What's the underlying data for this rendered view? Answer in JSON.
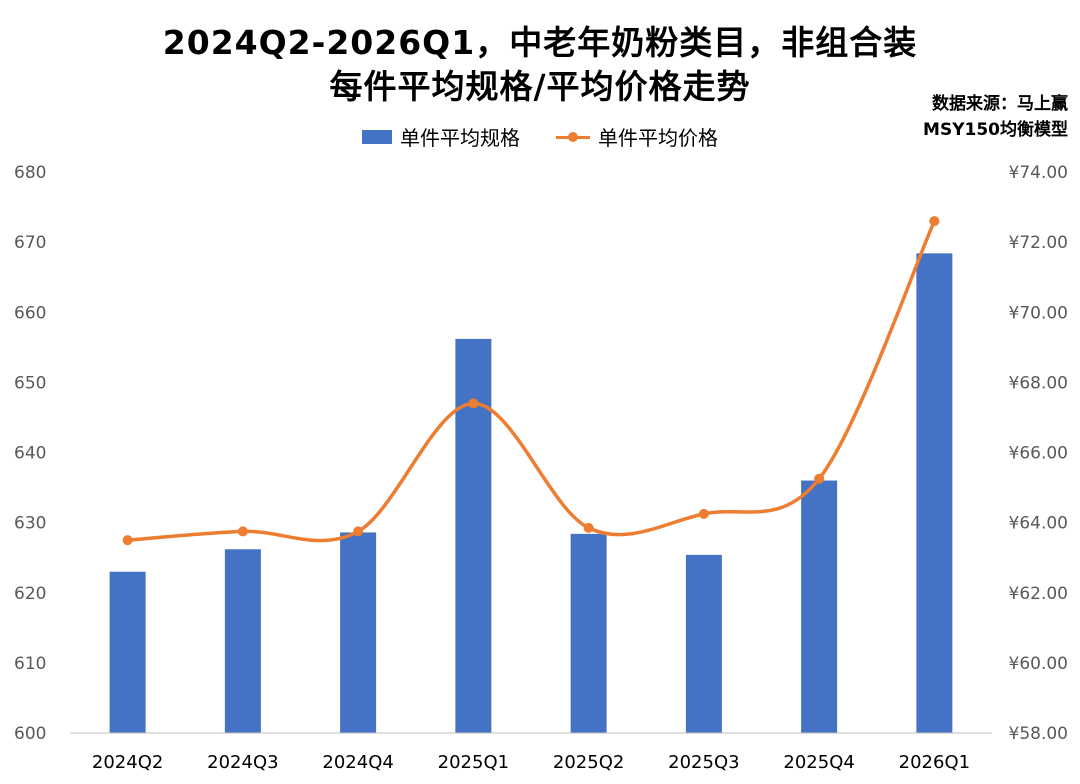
{
  "title_line1": "2024Q2-2026Q1，中老年奶粉类目，非组合装",
  "title_line2": "每件平均规格/平均价格走势",
  "source_line1": "数据来源：马上赢",
  "source_line2": "MSY150均衡模型",
  "colors": {
    "bar": "#4472C4",
    "line": "#ED7D31",
    "axis": "#BFBFBF",
    "text": "#595959"
  },
  "chart_data": {
    "type": "bar",
    "categories": [
      "2024Q2",
      "2024Q3",
      "2024Q4",
      "2025Q1",
      "2025Q2",
      "2025Q3",
      "2025Q4",
      "2026Q1"
    ],
    "series": [
      {
        "name": "单件平均规格",
        "type": "bar",
        "axis": "left",
        "values": [
          623,
          626.2,
          628.6,
          656.2,
          628.4,
          625.4,
          636,
          668.4
        ]
      },
      {
        "name": "单件平均价格",
        "type": "line",
        "axis": "right",
        "smooth": true,
        "values": [
          63.5,
          63.75,
          63.75,
          67.4,
          63.85,
          64.25,
          65.25,
          72.6
        ]
      }
    ],
    "left_axis": {
      "min": 600,
      "max": 680,
      "step": 10,
      "tick_labels": [
        "600",
        "610",
        "620",
        "630",
        "640",
        "650",
        "660",
        "670",
        "680"
      ]
    },
    "right_axis": {
      "min": 58,
      "max": 74,
      "step": 2,
      "tick_labels": [
        "¥58.00",
        "¥60.00",
        "¥62.00",
        "¥64.00",
        "¥66.00",
        "¥68.00",
        "¥70.00",
        "¥72.00",
        "¥74.00"
      ]
    },
    "legend_position": "top-center",
    "grid": false
  }
}
